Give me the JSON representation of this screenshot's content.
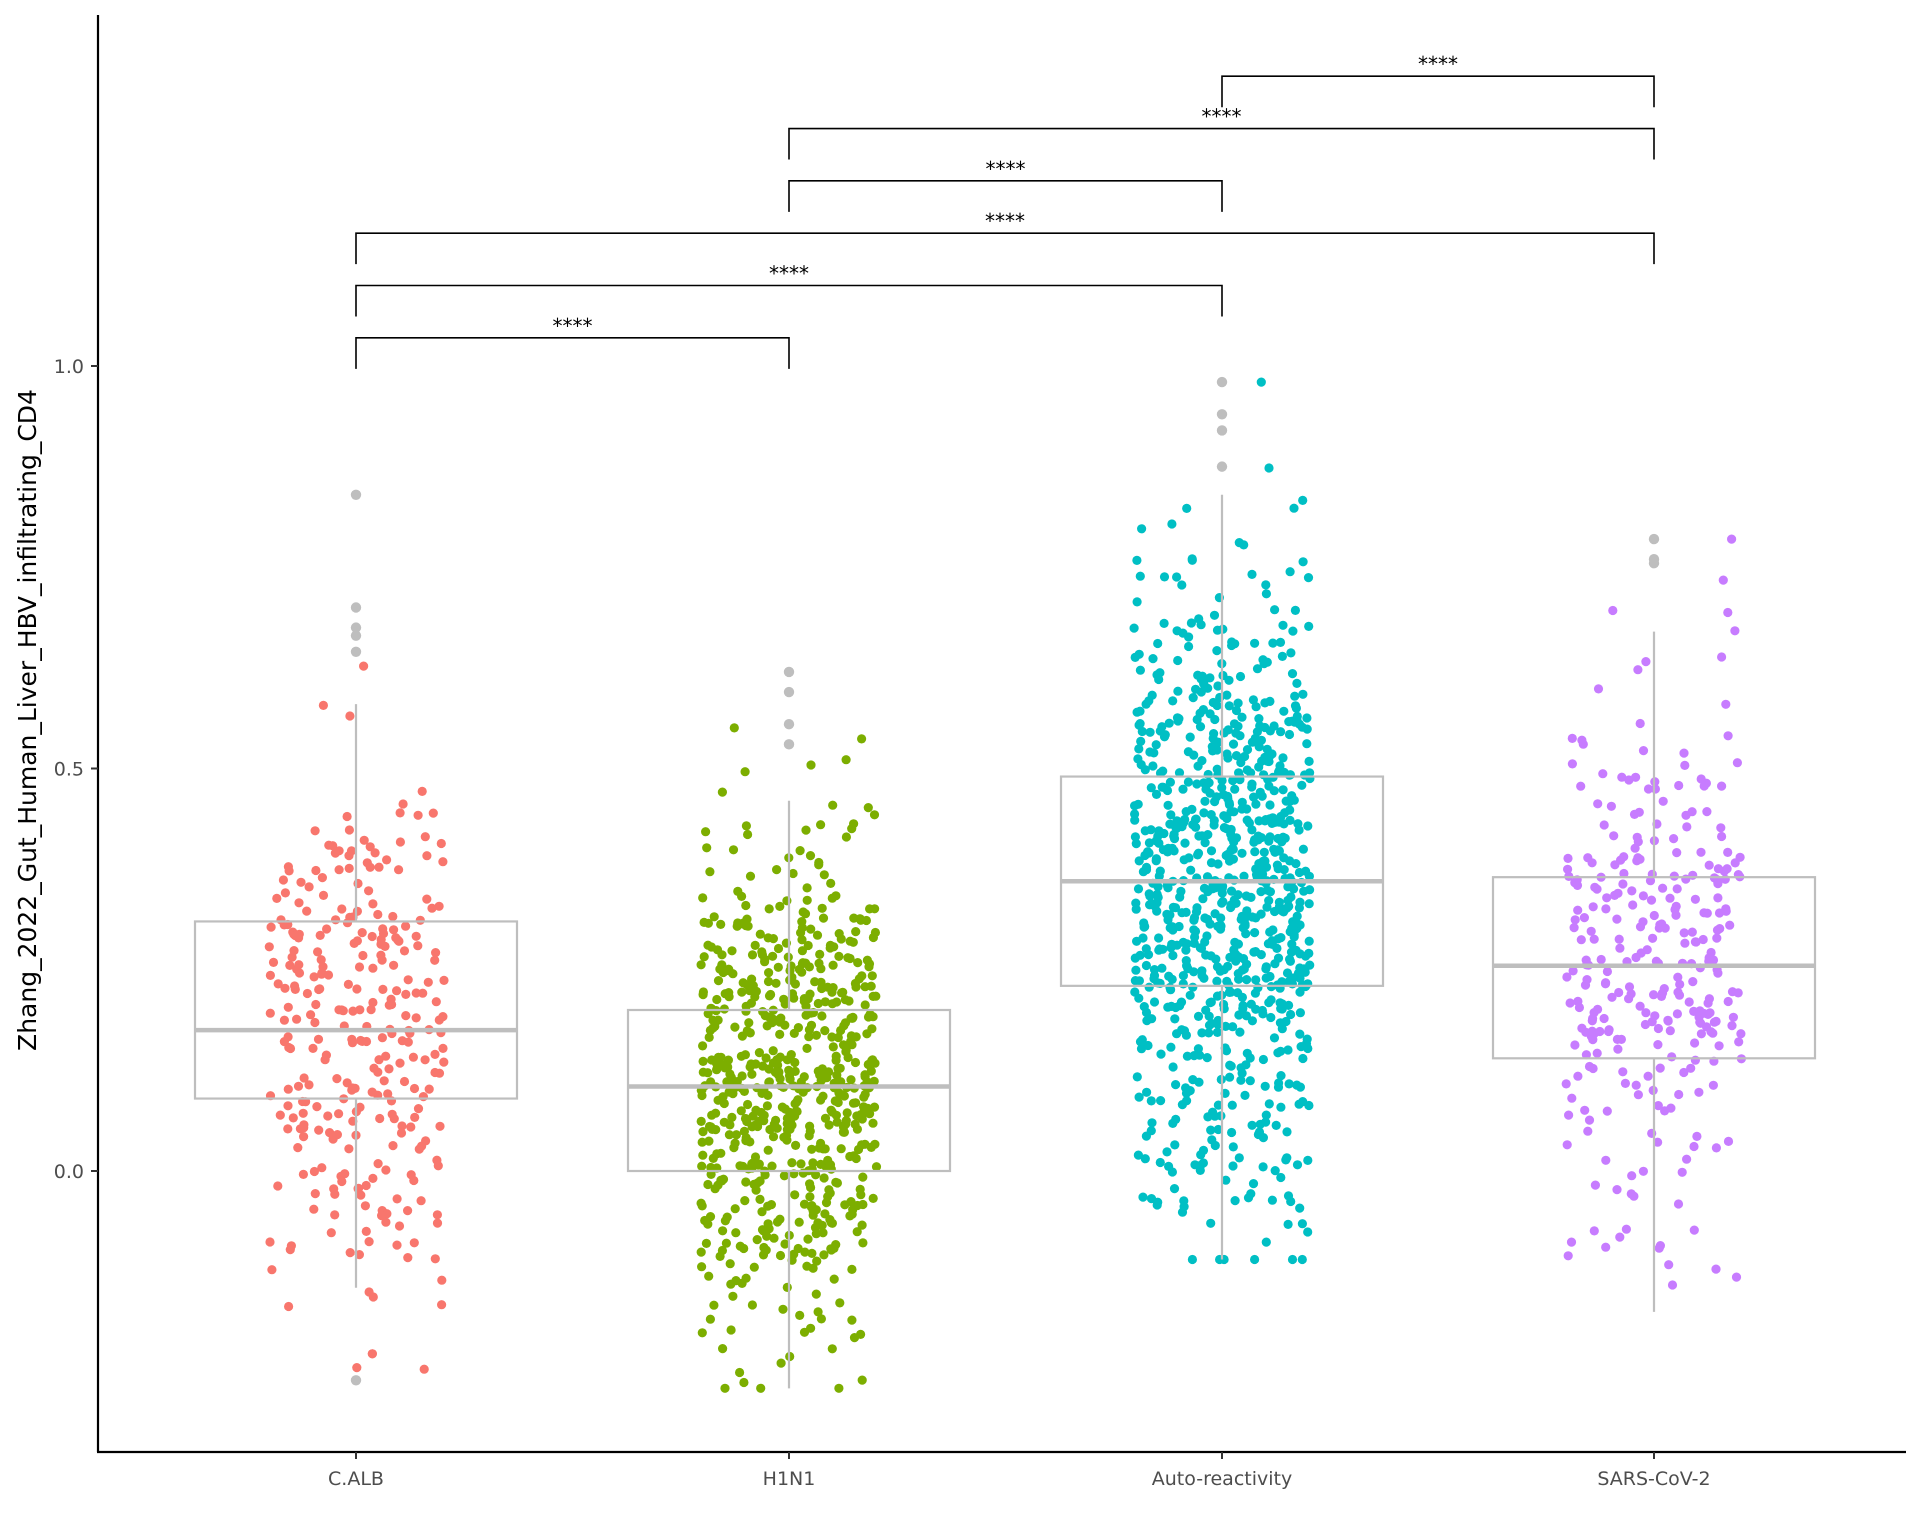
{
  "chart_data": {
    "type": "box",
    "ylabel": "Zhang_2022_Gut_Human_Liver_HBV_infiltrating_CD4",
    "xlabel": "",
    "ylim": [
      -0.35,
      1.45
    ],
    "yticks": [
      0.0,
      0.5,
      1.0
    ],
    "ytick_labels": [
      "0.0",
      "0.5",
      "1.0"
    ],
    "categories": [
      "C.ALB",
      "H1N1",
      "Auto-reactivity",
      "SARS-CoV-2"
    ],
    "colors": [
      "#F8766D",
      "#7CAE00",
      "#00BFC4",
      "#C77CFF"
    ],
    "box_color": "#BEBEBE",
    "groups": [
      {
        "name": "C.ALB",
        "q1": 0.09,
        "median": 0.175,
        "q3": 0.31,
        "whisker_low": -0.145,
        "whisker_high": 0.58,
        "outliers": [
          0.84,
          0.7,
          0.675,
          0.665,
          0.645,
          -0.26
        ],
        "n_points": 300,
        "spread": [
          -0.26,
          0.84
        ]
      },
      {
        "name": "H1N1",
        "q1": 0.0,
        "median": 0.105,
        "q3": 0.2,
        "whisker_low": -0.27,
        "whisker_high": 0.46,
        "outliers": [
          0.62,
          0.595,
          0.555,
          0.53
        ],
        "n_points": 650,
        "spread": [
          -0.27,
          0.62
        ]
      },
      {
        "name": "Auto-reactivity",
        "q1": 0.23,
        "median": 0.36,
        "q3": 0.49,
        "whisker_low": -0.11,
        "whisker_high": 0.84,
        "outliers": [
          0.98,
          0.94,
          0.92,
          0.875
        ],
        "n_points": 850,
        "spread": [
          -0.11,
          0.98
        ]
      },
      {
        "name": "SARS-CoV-2",
        "q1": 0.14,
        "median": 0.255,
        "q3": 0.365,
        "whisker_low": -0.175,
        "whisker_high": 0.67,
        "outliers": [
          0.785,
          0.76,
          0.755
        ],
        "n_points": 300,
        "spread": [
          -0.175,
          0.785
        ]
      }
    ],
    "comparisons": [
      {
        "from": "C.ALB",
        "to": "H1N1",
        "label": "****",
        "y": 1.035
      },
      {
        "from": "C.ALB",
        "to": "Auto-reactivity",
        "label": "****",
        "y": 1.1
      },
      {
        "from": "C.ALB",
        "to": "SARS-CoV-2",
        "label": "****",
        "y": 1.165
      },
      {
        "from": "H1N1",
        "to": "Auto-reactivity",
        "label": "****",
        "y": 1.23
      },
      {
        "from": "H1N1",
        "to": "SARS-CoV-2",
        "label": "****",
        "y": 1.295
      },
      {
        "from": "Auto-reactivity",
        "to": "SARS-CoV-2",
        "label": "****",
        "y": 1.36
      }
    ]
  }
}
